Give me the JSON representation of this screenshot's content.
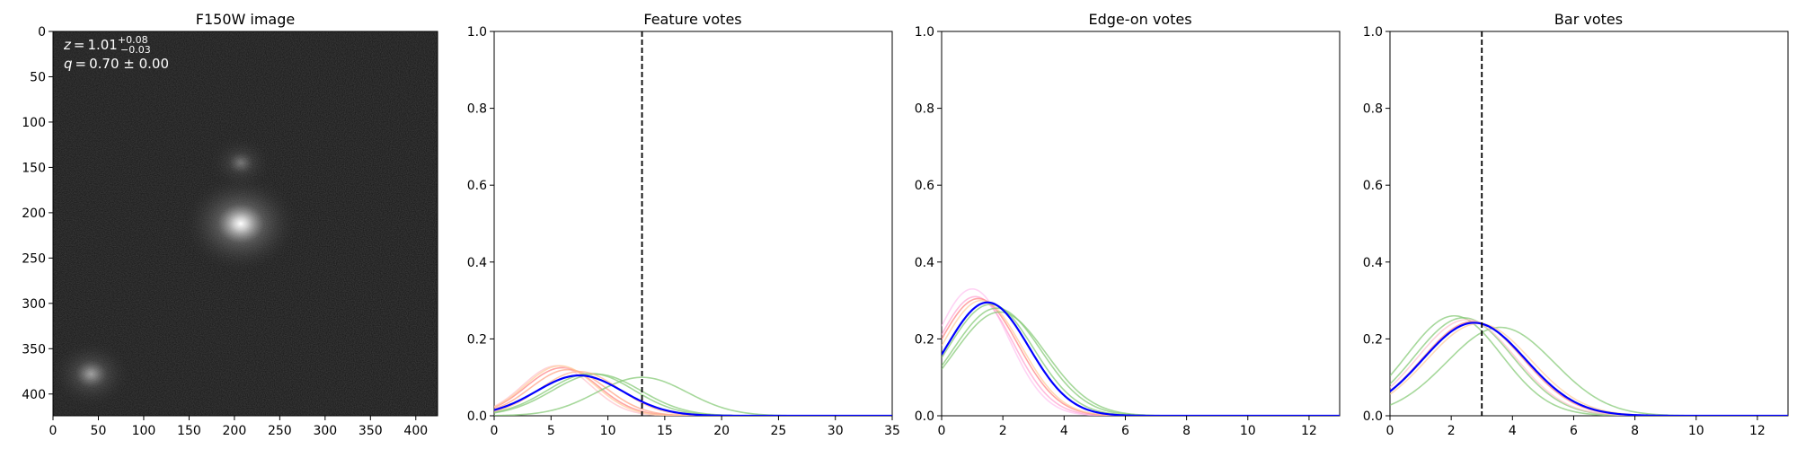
{
  "chart_data": [
    {
      "type": "image",
      "title": "F150W image",
      "xlim": [
        0,
        424
      ],
      "ylim": [
        424,
        0
      ],
      "x_ticks": [
        0,
        50,
        100,
        150,
        200,
        250,
        300,
        350,
        400
      ],
      "y_ticks": [
        0,
        50,
        100,
        150,
        200,
        250,
        300,
        350,
        400
      ],
      "annotations": [
        {
          "label": "z",
          "value": "1.01",
          "sup": "+0.08",
          "sub": "−0.03"
        },
        {
          "label": "q",
          "value": "0.70 ± 0.00"
        }
      ],
      "sources": [
        {
          "x": 207,
          "y": 212,
          "brightness": 1.0
        },
        {
          "x": 207,
          "y": 145,
          "brightness": 0.35
        },
        {
          "x": 42,
          "y": 378,
          "brightness": 0.55
        }
      ],
      "colormap": "gray"
    },
    {
      "type": "line",
      "title": "Feature votes",
      "xlim": [
        0,
        35
      ],
      "ylim": [
        0,
        1.0
      ],
      "x_ticks": [
        0,
        5,
        10,
        15,
        20,
        25,
        30,
        35
      ],
      "y_ticks": [
        0.0,
        0.2,
        0.4,
        0.6,
        0.8,
        1.0
      ],
      "vline": 13,
      "curves": [
        {
          "color": "#ff7f7f",
          "peak_x": 6.0,
          "peak_y": 0.125,
          "sigma": 3.2
        },
        {
          "color": "#ffc0cb",
          "peak_x": 5.5,
          "peak_y": 0.13,
          "sigma": 3.0
        },
        {
          "color": "#ff9f80",
          "peak_x": 6.5,
          "peak_y": 0.12,
          "sigma": 3.3
        },
        {
          "color": "#ffcc99",
          "peak_x": 5.8,
          "peak_y": 0.13,
          "sigma": 3.1
        },
        {
          "color": "#80c870",
          "peak_x": 13.0,
          "peak_y": 0.1,
          "sigma": 4.0
        },
        {
          "color": "#80c870",
          "peak_x": 8.5,
          "peak_y": 0.11,
          "sigma": 3.8
        },
        {
          "color": "#80c870",
          "peak_x": 9.0,
          "peak_y": 0.108,
          "sigma": 3.9
        },
        {
          "color": "#ffb090",
          "peak_x": 7.5,
          "peak_y": 0.115,
          "sigma": 3.5
        }
      ],
      "mean_curve": {
        "color": "#0000ff",
        "peak_x": 7.5,
        "peak_y": 0.105,
        "sigma": 3.8
      }
    },
    {
      "type": "line",
      "title": "Edge-on votes",
      "xlim": [
        0,
        13
      ],
      "ylim": [
        0,
        1.0
      ],
      "x_ticks": [
        0,
        2,
        4,
        6,
        8,
        10,
        12
      ],
      "y_ticks": [
        0.0,
        0.2,
        0.4,
        0.6,
        0.8,
        1.0
      ],
      "curves": [
        {
          "color": "#ffc0f0",
          "peak_x": 1.0,
          "peak_y": 0.33,
          "sigma": 1.2
        },
        {
          "color": "#ff9fd0",
          "peak_x": 1.1,
          "peak_y": 0.31,
          "sigma": 1.25
        },
        {
          "color": "#ff7f7f",
          "peak_x": 1.2,
          "peak_y": 0.305,
          "sigma": 1.3
        },
        {
          "color": "#ffcc99",
          "peak_x": 1.3,
          "peak_y": 0.3,
          "sigma": 1.3
        },
        {
          "color": "#80c870",
          "peak_x": 1.8,
          "peak_y": 0.28,
          "sigma": 1.45
        },
        {
          "color": "#80c870",
          "peak_x": 1.9,
          "peak_y": 0.27,
          "sigma": 1.5
        },
        {
          "color": "#80c870",
          "peak_x": 1.6,
          "peak_y": 0.29,
          "sigma": 1.4
        }
      ],
      "mean_curve": {
        "color": "#0000ff",
        "peak_x": 1.5,
        "peak_y": 0.295,
        "sigma": 1.35
      }
    },
    {
      "type": "line",
      "title": "Bar votes",
      "xlim": [
        0,
        13
      ],
      "ylim": [
        0,
        1.0
      ],
      "x_ticks": [
        0,
        2,
        4,
        6,
        8,
        10,
        12
      ],
      "y_ticks": [
        0.0,
        0.2,
        0.4,
        0.6,
        0.8,
        1.0
      ],
      "vline": 3,
      "curves": [
        {
          "color": "#80c870",
          "peak_x": 2.1,
          "peak_y": 0.26,
          "sigma": 1.55
        },
        {
          "color": "#80c870",
          "peak_x": 3.6,
          "peak_y": 0.23,
          "sigma": 1.75
        },
        {
          "color": "#80c870",
          "peak_x": 2.4,
          "peak_y": 0.255,
          "sigma": 1.6
        },
        {
          "color": "#ff7f7f",
          "peak_x": 2.7,
          "peak_y": 0.245,
          "sigma": 1.65
        },
        {
          "color": "#ffc0cb",
          "peak_x": 2.5,
          "peak_y": 0.25,
          "sigma": 1.6
        },
        {
          "color": "#ffcc99",
          "peak_x": 2.9,
          "peak_y": 0.24,
          "sigma": 1.7
        }
      ],
      "mean_curve": {
        "color": "#0000ff",
        "peak_x": 2.75,
        "peak_y": 0.242,
        "sigma": 1.68
      }
    }
  ]
}
